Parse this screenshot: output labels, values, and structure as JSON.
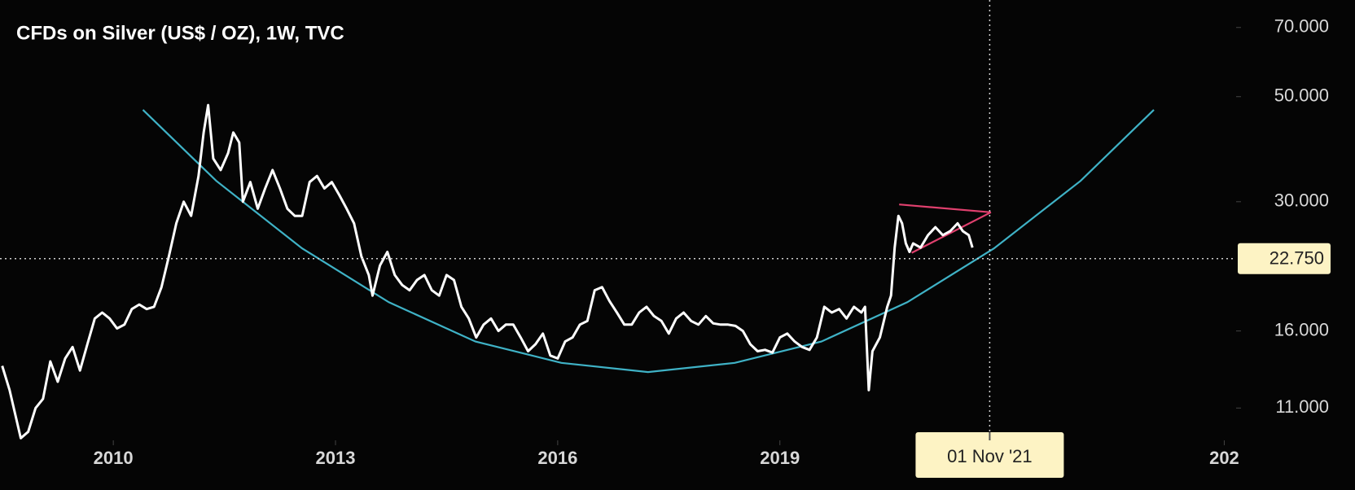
{
  "chart_data": {
    "type": "line",
    "title": "CFDs on Silver (US$ / OZ), 1W, TVC",
    "log_scale": true,
    "xlim": [
      2008.47,
      2025.16
    ],
    "ylim": [
      9.4,
      80
    ],
    "xticks": [
      2010,
      2013,
      2016,
      2019,
      {
        "value": 2025,
        "label": "202"
      }
    ],
    "yticks": [
      {
        "value": 70,
        "label": "70.000"
      },
      {
        "value": 50,
        "label": "50.000"
      },
      {
        "value": 30,
        "label": "30.000"
      },
      {
        "value": 16,
        "label": "16.000"
      },
      {
        "value": 11,
        "label": "11.000"
      }
    ],
    "x": [
      2008.5,
      2008.6,
      2008.75,
      2008.85,
      2008.95,
      2009.05,
      2009.15,
      2009.25,
      2009.35,
      2009.45,
      2009.55,
      2009.65,
      2009.75,
      2009.85,
      2009.95,
      2010.05,
      2010.15,
      2010.25,
      2010.35,
      2010.45,
      2010.55,
      2010.65,
      2010.75,
      2010.85,
      2010.95,
      2011.05,
      2011.15,
      2011.22,
      2011.28,
      2011.35,
      2011.45,
      2011.55,
      2011.62,
      2011.7,
      2011.75,
      2011.85,
      2011.95,
      2012.05,
      2012.15,
      2012.25,
      2012.35,
      2012.45,
      2012.55,
      2012.65,
      2012.75,
      2012.85,
      2012.95,
      2013.05,
      2013.15,
      2013.25,
      2013.35,
      2013.45,
      2013.5,
      2013.6,
      2013.7,
      2013.8,
      2013.9,
      2014.0,
      2014.1,
      2014.2,
      2014.3,
      2014.4,
      2014.5,
      2014.6,
      2014.7,
      2014.8,
      2014.9,
      2015.0,
      2015.1,
      2015.2,
      2015.3,
      2015.4,
      2015.5,
      2015.6,
      2015.7,
      2015.8,
      2015.9,
      2016.0,
      2016.1,
      2016.2,
      2016.3,
      2016.4,
      2016.5,
      2016.6,
      2016.7,
      2016.8,
      2016.9,
      2017.0,
      2017.1,
      2017.2,
      2017.3,
      2017.4,
      2017.5,
      2017.6,
      2017.7,
      2017.8,
      2017.9,
      2018.0,
      2018.1,
      2018.2,
      2018.3,
      2018.4,
      2018.5,
      2018.6,
      2018.7,
      2018.8,
      2018.9,
      2019.0,
      2019.1,
      2019.2,
      2019.3,
      2019.4,
      2019.5,
      2019.6,
      2019.7,
      2019.8,
      2019.9,
      2020.0,
      2020.1,
      2020.15,
      2020.2,
      2020.25,
      2020.35,
      2020.45,
      2020.5,
      2020.55,
      2020.6,
      2020.65,
      2020.7,
      2020.75,
      2020.8,
      2020.9,
      2021.0,
      2021.1,
      2021.2,
      2021.3,
      2021.4,
      2021.47,
      2021.55,
      2021.6
    ],
    "series": [
      {
        "color": "#ffffff",
        "values": [
          13.5,
          12,
          9.5,
          9.8,
          11,
          11.5,
          13.8,
          12.5,
          14,
          14.8,
          13.2,
          15,
          17,
          17.5,
          17,
          16.2,
          16.5,
          17.8,
          18.2,
          17.8,
          18,
          19.8,
          23,
          27,
          30,
          28,
          34,
          42,
          48,
          37,
          35,
          38,
          42,
          40,
          30,
          33,
          29,
          32,
          35,
          32,
          29,
          28,
          28,
          33,
          34,
          32,
          33,
          31,
          29,
          27,
          23,
          21,
          19,
          22,
          23.5,
          21,
          20,
          19.5,
          20.5,
          21,
          19.5,
          19,
          21,
          20.5,
          18,
          17,
          15.5,
          16.5,
          17,
          16,
          16.5,
          16.5,
          15.5,
          14.5,
          15,
          15.8,
          14.2,
          14,
          15.2,
          15.5,
          16.5,
          16.8,
          19.5,
          19.8,
          18.5,
          17.5,
          16.5,
          16.5,
          17.5,
          18,
          17.2,
          16.8,
          15.8,
          17,
          17.5,
          16.8,
          16.5,
          17.2,
          16.6,
          16.5,
          16.5,
          16.4,
          16,
          15,
          14.5,
          14.6,
          14.4,
          15.5,
          15.8,
          15.2,
          14.8,
          14.6,
          15.5,
          18,
          17.5,
          17.8,
          17,
          18,
          17.5,
          18,
          12,
          14.5,
          15.5,
          18,
          19,
          24,
          28,
          27,
          24.5,
          23.5,
          24.5,
          24,
          25.5,
          26.5,
          25.5,
          26,
          27,
          26,
          25.5,
          24
        ]
      }
    ],
    "trendlines": [
      {
        "color": "#3fb2c6",
        "x": [
          2010.4,
          2011.39,
          2012.55,
          2013.72,
          2014.89,
          2016.05,
          2017.22,
          2018.39,
          2019.56,
          2020.72,
          2021.89,
          2023.06,
          2024.05
        ],
        "values": [
          46.9,
          33.2,
          23.9,
          18.4,
          15.2,
          13.7,
          13.1,
          13.7,
          15.2,
          18.4,
          23.9,
          33.2,
          46.9
        ]
      },
      {
        "color": "#e0406e",
        "x": [
          2020.61,
          2021.85
        ],
        "values": [
          29.6,
          28.5
        ]
      },
      {
        "color": "#e0406e",
        "x": [
          2020.78,
          2021.85
        ],
        "values": [
          23.4,
          28.5
        ]
      }
    ],
    "crosshair": {
      "x": {
        "value": 2021.833,
        "label": "01 Nov '21"
      },
      "y": {
        "value": 22.75,
        "label": "22.750"
      }
    }
  }
}
